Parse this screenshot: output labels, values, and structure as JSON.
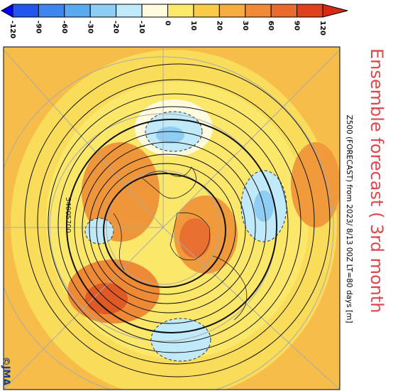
{
  "title": "Ensemble forecast ( 3rd month",
  "subtitle": "Z500 (FORECAST) from 2023/ 8/13 00Z LT=80 days [m]",
  "credit": "©JMA",
  "colorbar": {
    "labels": [
      "-120",
      "-90",
      "-60",
      "-30",
      "-20",
      "-10",
      "0",
      "10",
      "20",
      "30",
      "60",
      "90",
      "120"
    ],
    "colors": [
      "#0000f0",
      "#2255f0",
      "#3f85f0",
      "#5aaaf0",
      "#8fcdf5",
      "#c0eafa",
      "#fffbe0",
      "#fbea6a",
      "#f8cc45",
      "#f6ad3e",
      "#f08a35",
      "#ea6a2e",
      "#e0401e",
      "#d42a18"
    ]
  },
  "contour_labels": [
    "5400",
    "5700"
  ]
}
